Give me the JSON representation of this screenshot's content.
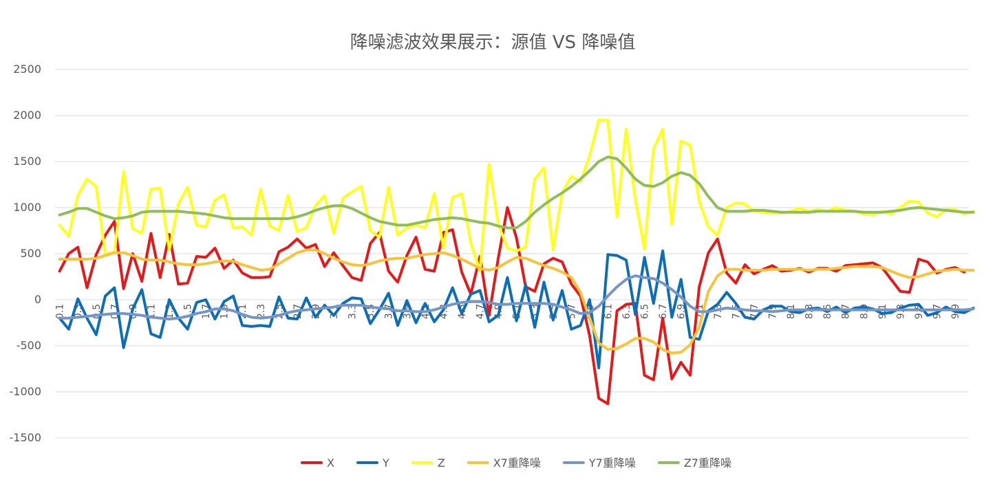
{
  "chart_data": {
    "type": "line",
    "title": "降噪滤波效果展示：源值 VS 降噪值",
    "xlabel": "",
    "ylabel": "",
    "ylim": [
      -1500,
      2500
    ],
    "yticks": [
      2500,
      2000,
      1500,
      1000,
      500,
      0,
      -500,
      -1000,
      -1500
    ],
    "grid": true,
    "legend": "bottom",
    "x_start": 0.1,
    "x_step": 0.1,
    "x_tick_every": 2,
    "series": [
      {
        "name": "X",
        "color": "#e31a1c",
        "values": [
          310,
          500,
          570,
          130,
          490,
          700,
          850,
          120,
          500,
          200,
          720,
          240,
          710,
          170,
          180,
          470,
          460,
          560,
          340,
          430,
          290,
          240,
          240,
          250,
          520,
          570,
          660,
          560,
          600,
          360,
          510,
          370,
          240,
          210,
          610,
          730,
          310,
          190,
          480,
          680,
          330,
          310,
          730,
          760,
          300,
          60,
          470,
          -170,
          450,
          1000,
          670,
          140,
          90,
          390,
          450,
          410,
          170,
          40,
          -390,
          -1070,
          -1130,
          -120,
          -50,
          -40,
          -820,
          -870,
          -200,
          -860,
          -680,
          -820,
          140,
          510,
          660,
          290,
          180,
          380,
          280,
          330,
          370,
          310,
          320,
          340,
          300,
          340,
          340,
          310,
          370,
          380,
          390,
          400,
          350,
          220,
          90,
          80,
          440,
          410,
          290,
          330,
          350,
          300
        ]
      },
      {
        "name": "Y",
        "color": "#0e6eb5",
        "values": [
          -200,
          -320,
          10,
          -200,
          -380,
          40,
          130,
          -520,
          -100,
          110,
          -370,
          -410,
          0,
          -200,
          -320,
          -30,
          0,
          -210,
          -20,
          40,
          -280,
          -290,
          -280,
          -290,
          30,
          -200,
          -210,
          20,
          -190,
          -60,
          -170,
          -40,
          20,
          10,
          -260,
          -110,
          70,
          -280,
          -10,
          -250,
          -40,
          -240,
          -110,
          130,
          -150,
          60,
          100,
          -240,
          -170,
          240,
          -230,
          160,
          -300,
          190,
          -220,
          100,
          -320,
          -280,
          0,
          -740,
          490,
          480,
          430,
          -160,
          460,
          -40,
          530,
          -190,
          220,
          -410,
          -430,
          -120,
          -50,
          80,
          -40,
          -190,
          -210,
          -110,
          -70,
          -70,
          -130,
          -140,
          -100,
          -90,
          -130,
          -80,
          -140,
          -90,
          -80,
          -100,
          -150,
          -140,
          -90,
          -60,
          -50,
          -170,
          -140,
          -80,
          -130,
          -140,
          -90
        ]
      },
      {
        "name": "Z",
        "color": "#ffff1f",
        "values": [
          810,
          690,
          1130,
          1310,
          1230,
          500,
          510,
          1390,
          770,
          720,
          1200,
          1210,
          540,
          1040,
          1220,
          810,
          790,
          1080,
          1140,
          780,
          790,
          700,
          1200,
          800,
          750,
          1130,
          740,
          780,
          1020,
          1130,
          720,
          1100,
          1170,
          1230,
          750,
          680,
          1220,
          700,
          780,
          810,
          780,
          1150,
          560,
          1110,
          1150,
          620,
          310,
          1470,
          820,
          560,
          530,
          570,
          1310,
          1430,
          540,
          1160,
          1340,
          1280,
          1560,
          1950,
          1950,
          900,
          1850,
          1090,
          550,
          1640,
          1850,
          820,
          1720,
          1680,
          1070,
          790,
          700,
          1000,
          1050,
          1040,
          960,
          950,
          940,
          940,
          960,
          990,
          960,
          980,
          960,
          1000,
          970,
          960,
          930,
          920,
          960,
          930,
          1000,
          1070,
          1060,
          940,
          900,
          980,
          980,
          930,
          960
        ]
      },
      {
        "name": "X7重降噪",
        "color": "#f7c33d",
        "values": [
          440,
          440,
          440,
          440,
          450,
          480,
          510,
          510,
          480,
          440,
          430,
          430,
          410,
          390,
          380,
          380,
          390,
          410,
          420,
          420,
          380,
          350,
          320,
          330,
          390,
          450,
          510,
          540,
          540,
          500,
          450,
          410,
          380,
          370,
          390,
          420,
          440,
          450,
          450,
          470,
          490,
          500,
          510,
          480,
          440,
          390,
          340,
          320,
          350,
          410,
          460,
          450,
          410,
          370,
          340,
          300,
          240,
          80,
          -200,
          -470,
          -540,
          -530,
          -480,
          -420,
          -420,
          -460,
          -540,
          -580,
          -570,
          -490,
          -300,
          90,
          260,
          330,
          330,
          320,
          320,
          320,
          330,
          330,
          330,
          330,
          320,
          330,
          330,
          340,
          350,
          360,
          360,
          360,
          350,
          310,
          270,
          240,
          250,
          280,
          310,
          320,
          330,
          320,
          320
        ]
      },
      {
        "name": "Y7重降噪",
        "color": "#7595c9",
        "values": [
          -200,
          -200,
          -190,
          -180,
          -170,
          -160,
          -150,
          -150,
          -160,
          -170,
          -190,
          -200,
          -210,
          -200,
          -180,
          -150,
          -130,
          -100,
          -100,
          -120,
          -160,
          -190,
          -200,
          -190,
          -170,
          -140,
          -120,
          -110,
          -100,
          -90,
          -80,
          -60,
          -60,
          -60,
          -80,
          -90,
          -100,
          -120,
          -120,
          -130,
          -130,
          -110,
          -80,
          -50,
          -30,
          -20,
          -20,
          -30,
          -50,
          -50,
          -40,
          -40,
          -40,
          -40,
          -50,
          -80,
          -110,
          -150,
          -140,
          -70,
          40,
          140,
          220,
          260,
          240,
          230,
          180,
          110,
          30,
          -70,
          -130,
          -130,
          -110,
          -90,
          -100,
          -110,
          -120,
          -120,
          -130,
          -120,
          -110,
          -110,
          -110,
          -110,
          -110,
          -110,
          -110,
          -110,
          -110,
          -110,
          -110,
          -110,
          -110,
          -110,
          -110,
          -110,
          -110,
          -110,
          -110,
          -110,
          -100
        ]
      },
      {
        "name": "Z7重降噪",
        "color": "#8fbd5b",
        "values": [
          920,
          950,
          990,
          990,
          950,
          910,
          880,
          890,
          910,
          950,
          960,
          960,
          960,
          960,
          950,
          940,
          930,
          910,
          890,
          880,
          880,
          880,
          880,
          880,
          880,
          880,
          900,
          930,
          970,
          1000,
          1020,
          1020,
          990,
          940,
          890,
          850,
          830,
          810,
          810,
          830,
          850,
          870,
          880,
          890,
          880,
          860,
          840,
          830,
          800,
          780,
          780,
          850,
          950,
          1030,
          1100,
          1160,
          1230,
          1310,
          1400,
          1500,
          1550,
          1530,
          1430,
          1310,
          1240,
          1230,
          1270,
          1340,
          1380,
          1350,
          1260,
          1120,
          1000,
          960,
          960,
          960,
          970,
          970,
          960,
          950,
          950,
          950,
          950,
          960,
          960,
          960,
          960,
          960,
          950,
          950,
          950,
          960,
          970,
          990,
          1000,
          990,
          980,
          970,
          960,
          950,
          950
        ]
      }
    ]
  }
}
